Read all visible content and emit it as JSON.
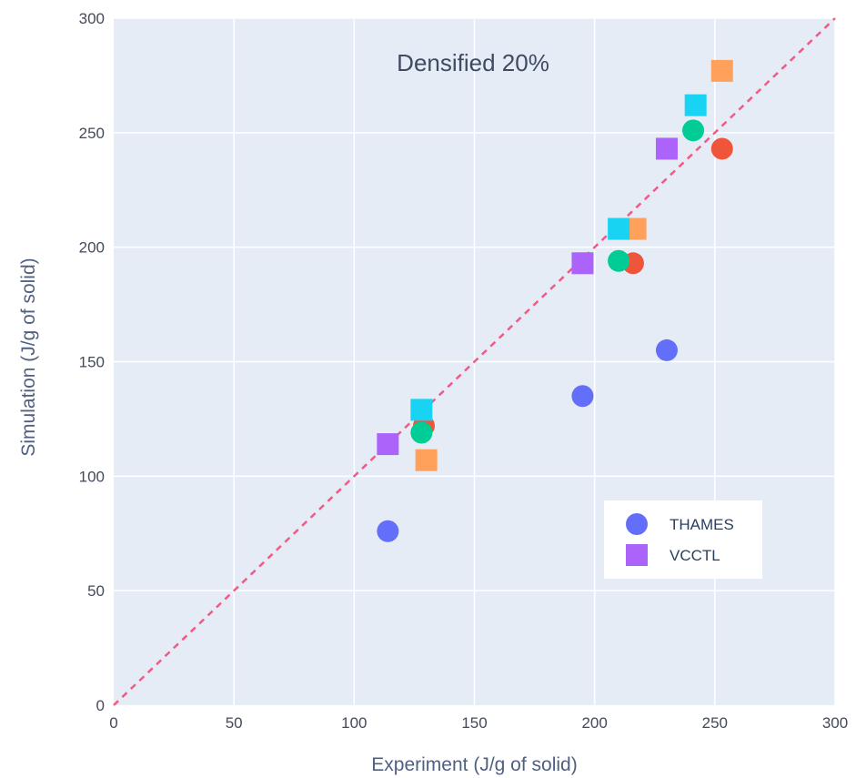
{
  "chart_data": {
    "type": "scatter",
    "title": "",
    "annotation": "Densified 20%",
    "xlabel": "Experiment (J/g of solid)",
    "ylabel": "Simulation (J/g of solid)",
    "xlim": [
      0,
      300
    ],
    "ylim": [
      0,
      300
    ],
    "x_ticks": [
      "0",
      "50",
      "100",
      "150",
      "200",
      "250",
      "300"
    ],
    "y_ticks": [
      "0",
      "50",
      "100",
      "150",
      "200",
      "250",
      "300"
    ],
    "grid": true,
    "legend_position": "bottom-right",
    "diagonal_line": {
      "from": [
        0,
        0
      ],
      "to": [
        300,
        300
      ],
      "color": "#f25a85",
      "style": "dashed"
    },
    "series": [
      {
        "name": "THAMES",
        "marker": "circle",
        "color": "#636efa",
        "points": [
          [
            114,
            76
          ],
          [
            195,
            135
          ],
          [
            230,
            155
          ]
        ]
      },
      {
        "name": "VCCTL",
        "marker": "square",
        "color": "#ab63fa",
        "points": [
          [
            114,
            114
          ],
          [
            195,
            193
          ],
          [
            230,
            243
          ]
        ]
      },
      {
        "marker": "circle",
        "color": "#ef553b",
        "points": [
          [
            129,
            122
          ],
          [
            216,
            193
          ],
          [
            253,
            243
          ]
        ]
      },
      {
        "marker": "circle",
        "color": "#00cc96",
        "points": [
          [
            128,
            119
          ],
          [
            210,
            194
          ],
          [
            241,
            251
          ]
        ]
      },
      {
        "marker": "square",
        "color": "#ffa15a",
        "points": [
          [
            130,
            107
          ],
          [
            217,
            208
          ],
          [
            253,
            277
          ]
        ]
      },
      {
        "marker": "square",
        "color": "#19d3f3",
        "points": [
          [
            128,
            129
          ],
          [
            210,
            208
          ],
          [
            242,
            262
          ]
        ]
      }
    ]
  }
}
